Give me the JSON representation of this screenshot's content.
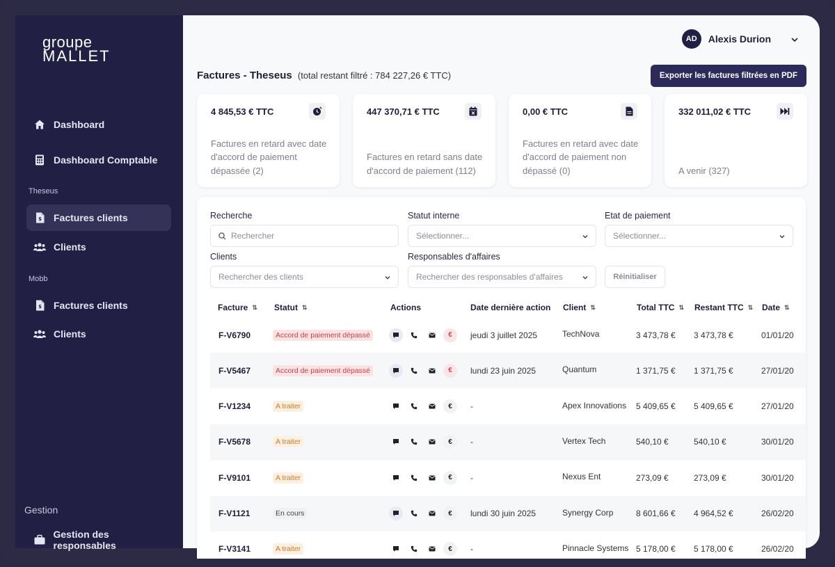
{
  "sidebar": {
    "logo_top": "groupe",
    "logo_bottom": "MALLET",
    "dashboard": "Dashboard",
    "dashboard_comptable": "Dashboard Comptable",
    "section_theseus": "Theseus",
    "theseus_factures": "Factures clients",
    "theseus_clients": "Clients",
    "section_mobb": "Mobb",
    "mobb_factures": "Factures clients",
    "mobb_clients": "Clients",
    "section_gestion": "Gestion",
    "gestion_responsables": "Gestion des responsables"
  },
  "user": {
    "initials": "AD",
    "name": "Alexis Durion"
  },
  "header": {
    "title": "Factures - Theseus",
    "subtitle": "(total restant filtré : 784 227,26 € TTC)",
    "export_label": "Exporter les factures filtrées en PDF"
  },
  "cards": [
    {
      "amount": "4 845,53 € TTC",
      "desc": "Factures en retard avec date d'accord de paiement dépassée (2)",
      "icon": "clock-alert-icon"
    },
    {
      "amount": "447 370,71 € TTC",
      "desc": "Factures en retard sans date d'accord de paiement (112)",
      "icon": "calendar-x-icon"
    },
    {
      "amount": "0,00 € TTC",
      "desc": "Factures en retard avec date d'accord de paiement non dépassé (0)",
      "icon": "file-icon"
    },
    {
      "amount": "332 011,02 € TTC",
      "desc": "A venir (327)",
      "icon": "fast-forward-icon"
    }
  ],
  "filters": {
    "recherche_label": "Recherche",
    "recherche_placeholder": "Rechercher",
    "statut_label": "Statut interne",
    "statut_placeholder": "Sélectionner...",
    "paiement_label": "Etat de paiement",
    "paiement_placeholder": "Sélectionner...",
    "clients_label": "Clients",
    "clients_placeholder": "Rechercher des clients",
    "responsables_label": "Responsables d'affaires",
    "responsables_placeholder": "Rechercher des responsables d'affaires",
    "reset_label": "Réinitialiser"
  },
  "table": {
    "headers": {
      "facture": "Facture",
      "statut": "Statut",
      "actions": "Actions",
      "date_action": "Date dernière action",
      "client": "Client",
      "total": "Total TTC",
      "restant": "Restant TTC",
      "date": "Date"
    },
    "sort_glyph": "⇅",
    "rows": [
      {
        "facture": "F-V6790",
        "statut": "Accord de paiement dépassé",
        "date_action": "jeudi 3 juillet 2025",
        "client": "TechNova",
        "total": "3 473,78 €",
        "restant": "3 473,78 €",
        "date": "01/01/20"
      },
      {
        "facture": "F-V5467",
        "statut": "Accord de paiement dépassé",
        "date_action": "lundi 23 juin 2025",
        "client": "Quantum",
        "total": "1 371,75 €",
        "restant": "1 371,75 €",
        "date": "27/01/20"
      },
      {
        "facture": "F-V1234",
        "statut": "A traiter",
        "date_action": "-",
        "client": "Apex Innovations",
        "total": "5 409,65 €",
        "restant": "5 409,65 €",
        "date": "27/01/20"
      },
      {
        "facture": "F-V5678",
        "statut": "A traiter",
        "date_action": "-",
        "client": "Vertex Tech",
        "total": "540,10 €",
        "restant": "540,10 €",
        "date": "30/01/20"
      },
      {
        "facture": "F-V9101",
        "statut": "A traiter",
        "date_action": "-",
        "client": "Nexus Ent",
        "total": "273,09 €",
        "restant": "273,09 €",
        "date": "30/01/20"
      },
      {
        "facture": "F-V1121",
        "statut": "En cours",
        "date_action": "lundi 30 juin 2025",
        "client": "Synergy Corp",
        "total": "8 601,66 €",
        "restant": "4 964,52 €",
        "date": "26/02/20"
      },
      {
        "facture": "F-V3141",
        "statut": "A traiter",
        "date_action": "-",
        "client": "Pinnacle Systems",
        "total": "5 178,00 €",
        "restant": "5 178,00 €",
        "date": "26/02/20"
      }
    ],
    "euro_glyph": "€"
  },
  "colors": {
    "sidebar_bg": "#221f45",
    "accent": "#2b2a5a",
    "badge_overdue_bg": "#fbe3e4",
    "badge_overdue_text": "#c8404a",
    "badge_todo_bg": "#fdf0e0",
    "badge_todo_text": "#c87a2a",
    "badge_progress_bg": "#f0f1f3",
    "badge_progress_text": "#444"
  }
}
